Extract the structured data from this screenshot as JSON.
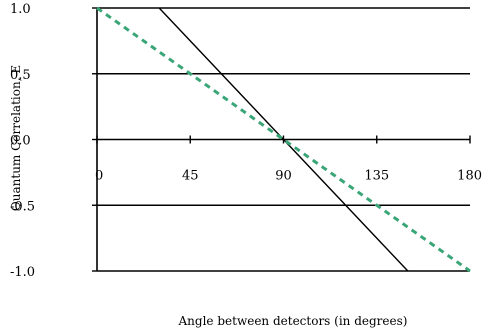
{
  "chart_data": {
    "type": "line",
    "title": "",
    "xlabel": "Angle between detectors (in degrees)",
    "ylabel": "Quantum Correlation, E",
    "xlim": [
      0,
      180
    ],
    "ylim": [
      -1,
      1
    ],
    "x_ticks": [
      0,
      45,
      90,
      135,
      180
    ],
    "x_tick_labels": [
      "0",
      "45",
      "90",
      "135",
      "180"
    ],
    "y_ticks": [
      1,
      0.5,
      0,
      -0.5,
      -1
    ],
    "y_tick_labels": [
      "1.0",
      "0.5",
      "0.0",
      "-0.5",
      "-1.0"
    ],
    "grid": "horizontal",
    "legend": "none",
    "series": [
      {
        "style": "solid",
        "color": "#000000",
        "x": [
          30,
          45,
          60,
          75,
          90,
          105,
          120,
          135,
          150
        ],
        "y": [
          1.0,
          0.75,
          0.5,
          0.25,
          0.0,
          -0.25,
          -0.5,
          -0.75,
          -1.0
        ]
      },
      {
        "style": "dashed",
        "color": "#3aa678",
        "x": [
          0,
          180
        ],
        "y": [
          1.0,
          -1.0
        ]
      }
    ]
  }
}
